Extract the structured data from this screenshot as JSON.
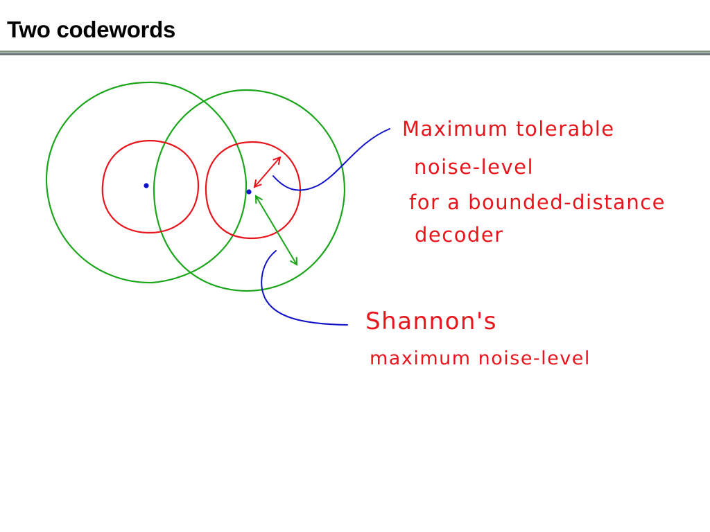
{
  "slide": {
    "title": "Two codewords"
  },
  "annotations": {
    "bounded_distance": {
      "lines": [
        "Maximum tolerable",
        "noise-level",
        "for a bounded-distance",
        "decoder"
      ]
    },
    "shannon": {
      "lines": [
        "Shannon's",
        "maximum noise-level"
      ]
    }
  },
  "colors": {
    "inner_circle": "#e8141c",
    "outer_circle": "#1aa51a",
    "codeword_dot": "#1010c8",
    "pointer_line": "#1010c8",
    "annotation_text": "#e8141c",
    "title_rule": "#7f927f"
  }
}
